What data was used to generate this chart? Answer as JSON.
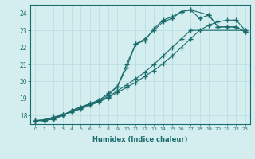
{
  "xlabel": "Humidex (Indice chaleur)",
  "bg_color": "#d4eef0",
  "grid_color": "#b8dce0",
  "line_color": "#1a6b6b",
  "xlim": [
    -0.5,
    23.5
  ],
  "ylim": [
    17.5,
    24.5
  ],
  "yticks": [
    18,
    19,
    20,
    21,
    22,
    23,
    24
  ],
  "xticks": [
    0,
    1,
    2,
    3,
    4,
    5,
    6,
    7,
    8,
    9,
    10,
    11,
    12,
    13,
    14,
    15,
    16,
    17,
    18,
    19,
    20,
    21,
    22,
    23
  ],
  "line1_x": [
    0,
    1,
    2,
    3,
    4,
    5,
    6,
    7,
    8,
    9,
    10,
    11,
    12,
    13,
    14,
    15,
    16,
    17,
    18,
    19,
    20,
    21,
    22,
    23
  ],
  "line1_y": [
    17.7,
    17.7,
    17.8,
    18.0,
    18.3,
    18.5,
    18.7,
    18.9,
    19.2,
    19.7,
    21.0,
    22.2,
    22.4,
    23.1,
    23.6,
    23.8,
    24.1,
    24.2,
    23.7,
    23.9,
    23.2,
    23.2,
    23.2,
    22.9
  ],
  "line2_x": [
    0,
    1,
    2,
    3,
    4,
    5,
    6,
    7,
    8,
    9,
    10,
    11,
    12,
    13,
    14,
    15,
    16,
    17,
    19,
    20,
    21,
    22,
    23
  ],
  "line2_y": [
    17.7,
    17.7,
    17.8,
    18.0,
    18.3,
    18.5,
    18.7,
    18.9,
    19.3,
    19.7,
    20.8,
    22.2,
    22.5,
    23.0,
    23.5,
    23.7,
    24.1,
    24.2,
    23.9,
    23.2,
    23.2,
    23.2,
    22.9
  ],
  "line3_x": [
    0,
    1,
    2,
    3,
    4,
    5,
    6,
    7,
    8,
    9,
    10,
    11,
    12,
    13,
    14,
    15,
    16,
    17,
    23
  ],
  "line3_y": [
    17.7,
    17.75,
    17.9,
    18.05,
    18.25,
    18.45,
    18.65,
    18.85,
    19.1,
    19.45,
    19.8,
    20.15,
    20.55,
    21.0,
    21.5,
    22.0,
    22.5,
    23.0,
    23.0
  ],
  "line4_x": [
    0,
    1,
    2,
    3,
    4,
    5,
    6,
    7,
    8,
    9,
    10,
    11,
    12,
    13,
    14,
    15,
    16,
    17,
    18,
    19,
    20,
    21,
    22,
    23
  ],
  "line4_y": [
    17.7,
    17.75,
    17.85,
    18.05,
    18.2,
    18.4,
    18.6,
    18.8,
    19.05,
    19.35,
    19.65,
    19.95,
    20.3,
    20.65,
    21.05,
    21.5,
    22.0,
    22.5,
    23.0,
    23.3,
    23.5,
    23.6,
    23.6,
    23.0
  ]
}
